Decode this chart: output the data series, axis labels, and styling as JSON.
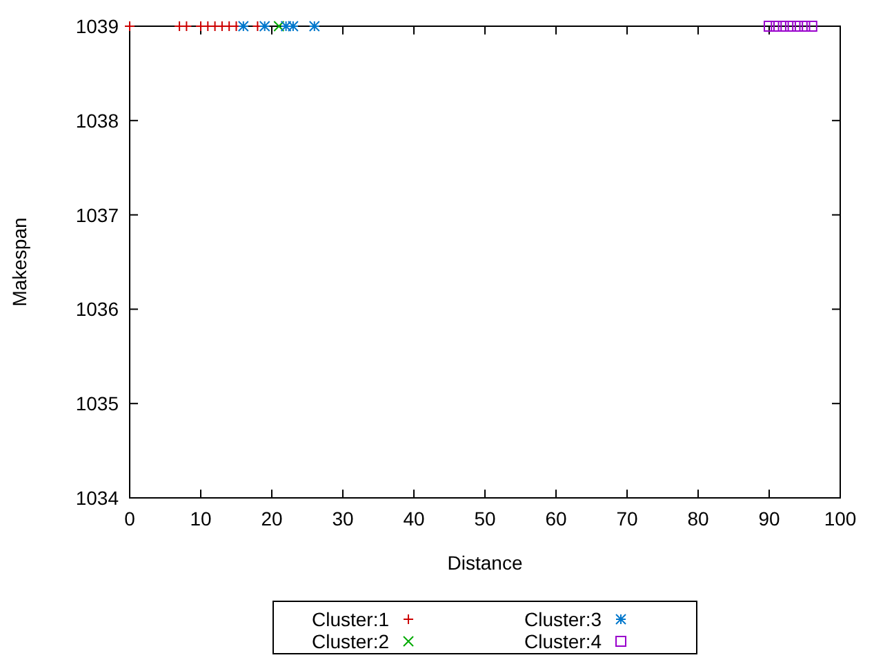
{
  "chart_data": {
    "type": "scatter",
    "xlabel": "Distance",
    "ylabel": "Makespan",
    "xlim": [
      0,
      100
    ],
    "ylim": [
      1034,
      1039
    ],
    "xticks": [
      0,
      10,
      20,
      30,
      40,
      50,
      60,
      70,
      80,
      90,
      100
    ],
    "yticks": [
      1034,
      1035,
      1036,
      1037,
      1038,
      1039
    ],
    "legend": "bottom",
    "grid": false,
    "series": [
      {
        "name": "Cluster:1",
        "color": "#cc0000",
        "x": [
          0,
          7,
          8,
          10,
          11,
          12,
          13,
          14,
          15,
          18
        ],
        "values": [
          1039,
          1039,
          1039,
          1039,
          1039,
          1039,
          1039,
          1039,
          1039,
          1039
        ]
      },
      {
        "name": "Cluster:2",
        "color": "#00aa00",
        "x": [
          21
        ],
        "values": [
          1039
        ]
      },
      {
        "name": "Cluster:3",
        "color": "#0077cc",
        "x": [
          16,
          19,
          22,
          23,
          26
        ],
        "values": [
          1039,
          1039,
          1039,
          1039,
          1039
        ]
      },
      {
        "name": "Cluster:4",
        "color": "#9900cc",
        "x": [
          90,
          91,
          92,
          93,
          94,
          95,
          96
        ],
        "values": [
          1039,
          1039,
          1039,
          1039,
          1039,
          1039,
          1039
        ]
      }
    ]
  }
}
